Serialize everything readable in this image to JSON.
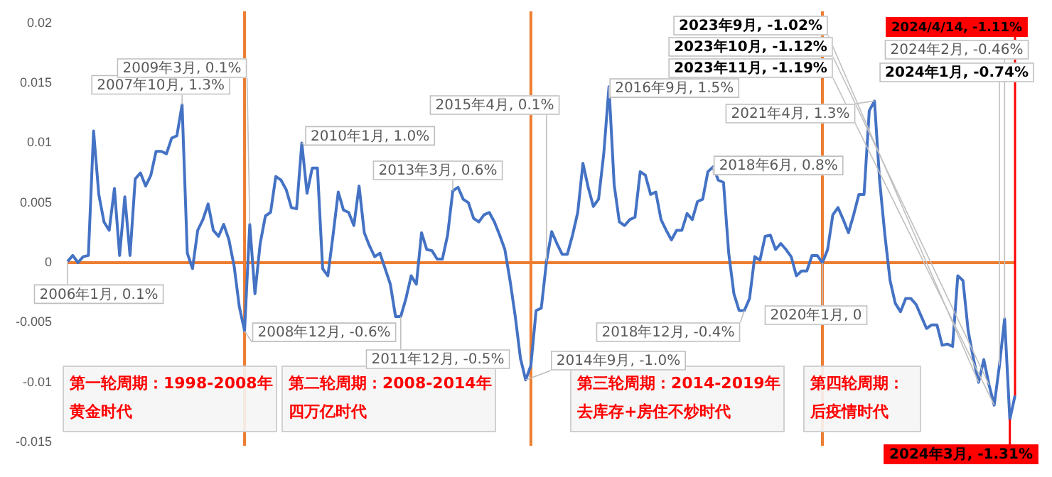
{
  "chart_data": {
    "type": "line",
    "categories": [
      null,
      null,
      null,
      null,
      null,
      null,
      null,
      null,
      null,
      null,
      null,
      null,
      null,
      null,
      null,
      null,
      null,
      null,
      null,
      null,
      null,
      null,
      null,
      null,
      null,
      null,
      null,
      null,
      null,
      null,
      null,
      null,
      null,
      null,
      null,
      null,
      null,
      null,
      null,
      null,
      null,
      null,
      null,
      null,
      null,
      null,
      null,
      null,
      null,
      null,
      null,
      null,
      null,
      null,
      null,
      null,
      null,
      null,
      null,
      null,
      null,
      null,
      null,
      null,
      null,
      null,
      null,
      null,
      null,
      null,
      null,
      null,
      null,
      null,
      null,
      null,
      null,
      null,
      null,
      null,
      null,
      null,
      null,
      null,
      null,
      null,
      null,
      null,
      null,
      null,
      null,
      null,
      null,
      null,
      null,
      null,
      null,
      null,
      null,
      null,
      null,
      null,
      null,
      null,
      null,
      null,
      null,
      null,
      null,
      null,
      null,
      null,
      null,
      null,
      null,
      null,
      null,
      null,
      null,
      null,
      null,
      null,
      null,
      null,
      null,
      null,
      null,
      null,
      null,
      null,
      null,
      null,
      null,
      null,
      null,
      null,
      null,
      null,
      null,
      null,
      null,
      null,
      null,
      null,
      null,
      null,
      null,
      null,
      null,
      null,
      null,
      null,
      null,
      null,
      null,
      null,
      null,
      null,
      null,
      null,
      null,
      null,
      null,
      null,
      null,
      null,
      null,
      null,
      null,
      null,
      null,
      null,
      null,
      null,
      null,
      null,
      null,
      null,
      null,
      null,
      null,
      null,
      null
    ],
    "ylim": [
      -0.0153,
      0.02
    ],
    "yticks": [
      {
        "value": -0.015,
        "label": "-0.015"
      },
      {
        "value": -0.01,
        "label": "-0.01"
      },
      {
        "value": -0.005,
        "label": "-0.005"
      },
      {
        "value": 0,
        "label": "0"
      },
      {
        "value": 0.005,
        "label": "0.005"
      },
      {
        "value": 0.01,
        "label": "0.01"
      },
      {
        "value": 0.015,
        "label": "0.015"
      },
      {
        "value": 0.02,
        "label": "0.02"
      }
    ],
    "tick_labels": "y",
    "grid": false,
    "legend": false,
    "marker": "none",
    "line_style": "solid",
    "series": [
      {
        "color": "#4472c4",
        "values": [
          0.0001,
          0.0006,
          0.0,
          0.0005,
          0.0006,
          0.011,
          0.0057,
          0.0034,
          0.0027,
          0.0062,
          0.0006,
          0.0055,
          0.0006,
          0.007,
          0.0075,
          0.0064,
          0.0073,
          0.0093,
          0.0093,
          0.0091,
          0.0104,
          0.0106,
          0.0132,
          0.0008,
          -0.0005,
          0.0027,
          0.0036,
          0.0049,
          0.0027,
          0.0022,
          0.0032,
          0.0019,
          -0.0003,
          -0.0037,
          -0.0057,
          0.0032,
          -0.0026,
          0.0016,
          0.0039,
          0.0042,
          0.0072,
          0.0069,
          0.0061,
          0.0046,
          0.0045,
          0.01,
          0.0058,
          0.0079,
          0.0079,
          -0.0005,
          -0.0011,
          0.0023,
          0.0059,
          0.0044,
          0.0042,
          0.0031,
          0.0064,
          0.0025,
          0.0014,
          0.0005,
          0.0008,
          -0.0005,
          -0.0018,
          -0.0045,
          -0.0045,
          -0.003,
          -0.0011,
          -0.0018,
          0.0025,
          0.0011,
          0.001,
          0.0003,
          0.0003,
          0.0023,
          0.006,
          0.0063,
          0.0053,
          0.005,
          0.0037,
          0.0034,
          0.004,
          0.0042,
          0.0034,
          0.0023,
          0.0011,
          -0.0015,
          -0.0045,
          -0.008,
          -0.0098,
          -0.0086,
          -0.004,
          -0.0038,
          0.0001,
          0.0026,
          0.0016,
          0.0007,
          0.0007,
          0.0023,
          0.0042,
          0.0083,
          0.0063,
          0.0047,
          0.0053,
          0.0091,
          0.0147,
          0.0065,
          0.0034,
          0.0031,
          0.0036,
          0.0038,
          0.0076,
          0.0073,
          0.0057,
          0.0059,
          0.0036,
          0.0027,
          0.0019,
          0.0027,
          0.0027,
          0.0041,
          0.0036,
          0.0051,
          0.0053,
          0.0076,
          0.008,
          0.0069,
          0.0067,
          0.0008,
          -0.0026,
          -0.004,
          -0.004,
          -0.003,
          0.0005,
          0.0002,
          0.0022,
          0.0023,
          0.0011,
          0.0016,
          0.0011,
          0.0005,
          -0.0011,
          -0.0007,
          -0.0007,
          0.0006,
          0.0006,
          0.0,
          0.0011,
          0.004,
          0.0046,
          0.0036,
          0.0025,
          0.004,
          0.0057,
          0.0057,
          0.0127,
          0.0135,
          0.0068,
          0.0023,
          -0.0015,
          -0.0034,
          -0.0041,
          -0.003,
          -0.003,
          -0.0035,
          -0.0045,
          -0.0055,
          -0.0052,
          -0.0052,
          -0.0069,
          -0.0068,
          -0.007,
          -0.0011,
          -0.0015,
          -0.0057,
          -0.008,
          -0.01,
          -0.0081,
          -0.0102,
          -0.0119,
          -0.0086,
          -0.0047,
          -0.0131,
          -0.0111
        ]
      }
    ],
    "ref_lines": [
      {
        "axis": "y",
        "value": 0,
        "color": "#ed7d31"
      }
    ],
    "annotations": [
      "2006年1月, 0.1%",
      "2007年10月, 1.3%",
      "2009年3月, 0.1%",
      "2008年12月, -0.6%",
      "2010年1月, 1.0%",
      "2011年12月, -0.5%",
      "2013年3月, 0.6%",
      "2014年9月, -1.0%",
      "2015年4月, 0.1%",
      "2016年9月, 1.5%",
      "2018年6月, 0.8%",
      "2018年12月, -0.4%",
      "2020年1月, 0",
      "2021年4月, 1.3%",
      "2024年2月, -0.46%",
      "2024年1月, -0.74%",
      "2023年9月, -1.02%",
      "2023年10月, -1.12%",
      "2023年11月, -1.19%",
      "2024年3月, -1.31%",
      "2024/4/14, -1.11%",
      "第一轮周期：1998-2008年",
      "黄金时代",
      "第二轮周期：2008-2014年",
      "四万亿时代",
      "第三轮周期：2014-2019年",
      "去库存+房住不炒时代",
      "第四轮周期：",
      "后疫情时代"
    ]
  }
}
